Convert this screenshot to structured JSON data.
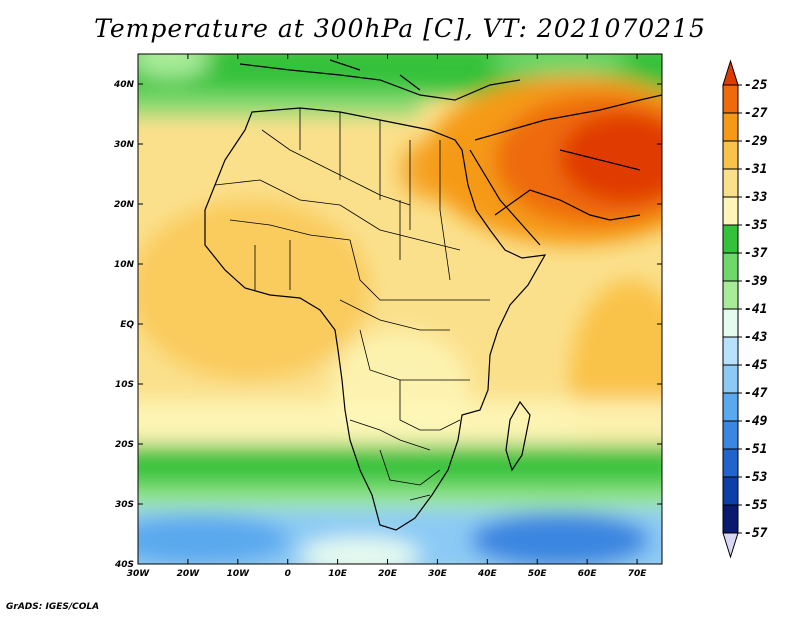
{
  "title": "Temperature at 300hPa [C], VT: 2021070215",
  "credit": "GrADS: IGES/COLA",
  "map": {
    "lon_labels": [
      "30W",
      "20W",
      "10W",
      "0",
      "10E",
      "20E",
      "30E",
      "40E",
      "50E",
      "60E",
      "70E"
    ],
    "lat_labels": [
      "40N",
      "30N",
      "20N",
      "10N",
      "EQ",
      "10S",
      "20S",
      "30S",
      "40S"
    ],
    "lon_range": [
      -30,
      75
    ],
    "lat_range": [
      -40,
      45
    ]
  },
  "colorbar": {
    "labels": [
      "-25",
      "-27",
      "-29",
      "-31",
      "-33",
      "-35",
      "-37",
      "-39",
      "-41",
      "-43",
      "-45",
      "-47",
      "-49",
      "-51",
      "-53",
      "-55",
      "-57"
    ],
    "colors": [
      "#e03a00",
      "#ee6a0a",
      "#f59a18",
      "#f9c24a",
      "#fbe08c",
      "#fdf6b8",
      "#36c13a",
      "#6ed86a",
      "#a8ec9a",
      "#e6fbf0",
      "#b8e2fb",
      "#8ccaf5",
      "#5aa8ee",
      "#3a86e0",
      "#2064cc",
      "#0c40a8",
      "#0a1a6e"
    ],
    "under_color": "#d8d8f6"
  }
}
